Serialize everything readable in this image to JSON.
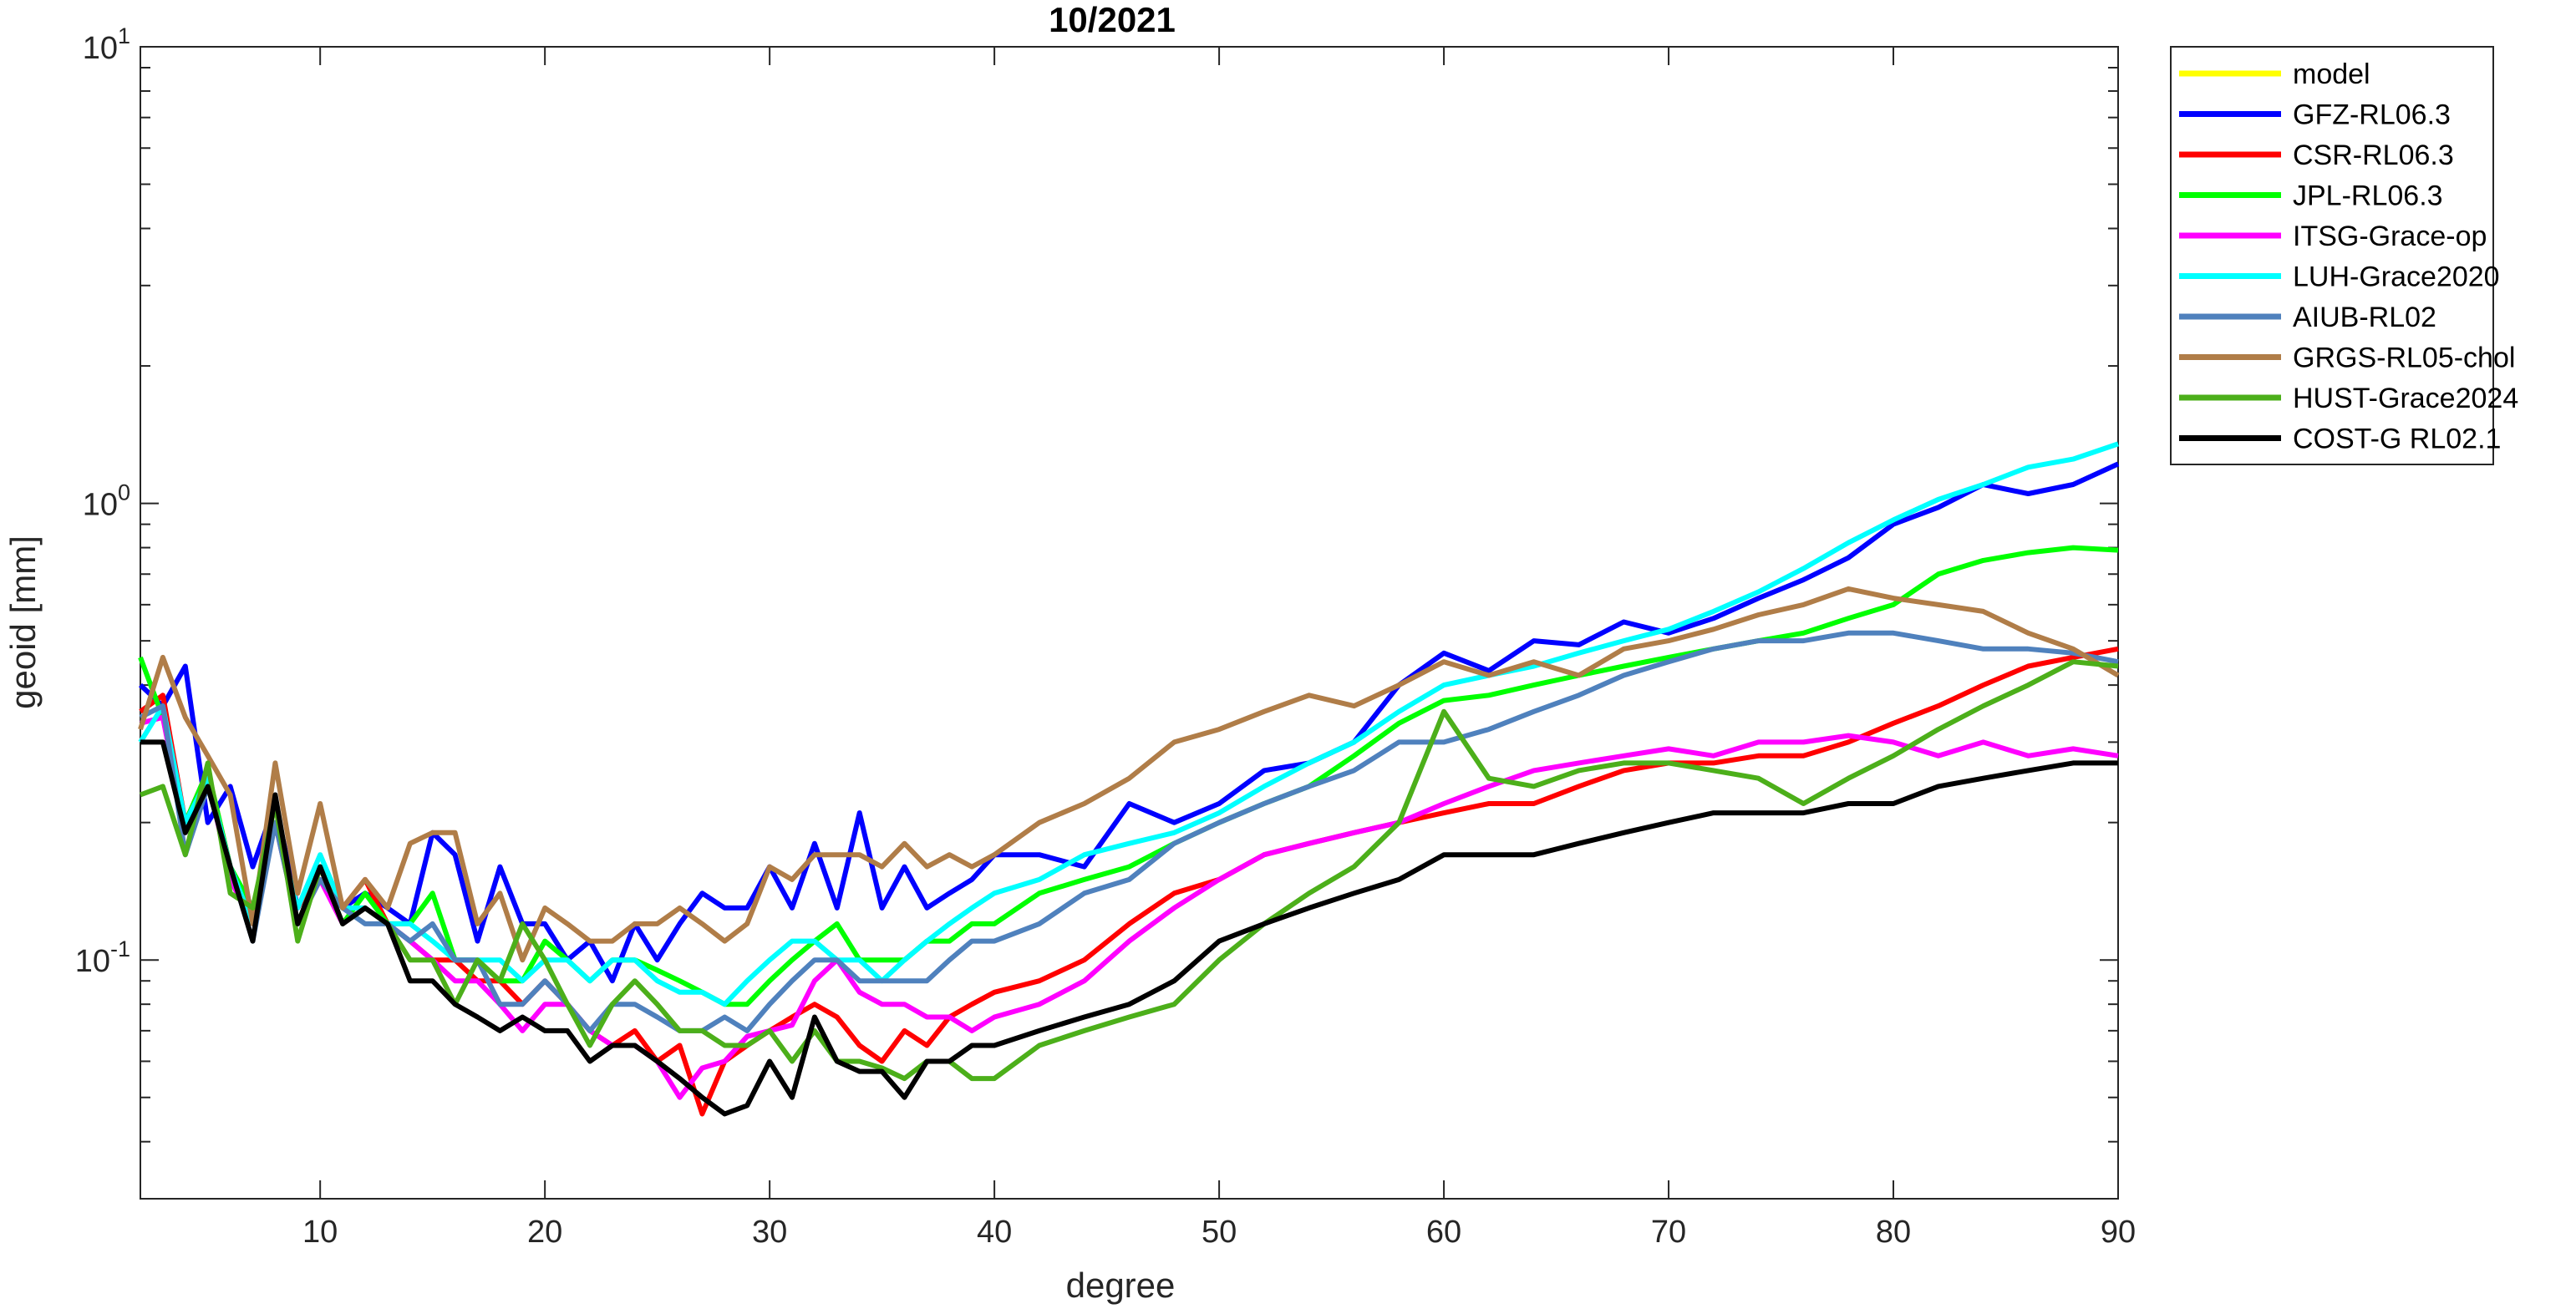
{
  "chart_data": {
    "type": "line",
    "title": "10/2021",
    "xlabel": "degree",
    "ylabel": "geoid [mm]",
    "xlim": [
      2,
      90
    ],
    "ylim": [
      0.03,
      10
    ],
    "y_scale": "log",
    "x_ticks": [
      10,
      20,
      30,
      40,
      50,
      60,
      70,
      80,
      90
    ],
    "x_tick_labels": [
      "10",
      "20",
      "30",
      "40",
      "50",
      "60",
      "70",
      "80",
      "90"
    ],
    "y_ticks": [
      {
        "value": 10,
        "base": "10",
        "exp": "1"
      },
      {
        "value": 1,
        "base": "10",
        "exp": "0"
      },
      {
        "value": 0.1,
        "base": "10",
        "exp": "-1"
      }
    ],
    "grid": false,
    "legend_position": "outside-top-right",
    "series": [
      {
        "name": "model",
        "color": "#ffff00",
        "x": [],
        "y": []
      },
      {
        "name": "GFZ-RL06.3",
        "color": "#0000ff",
        "x": [
          2,
          3,
          4,
          5,
          6,
          7,
          8,
          9,
          10,
          11,
          12,
          13,
          14,
          15,
          16,
          17,
          18,
          19,
          20,
          21,
          22,
          23,
          24,
          25,
          26,
          27,
          28,
          29,
          30,
          31,
          32,
          33,
          34,
          35,
          36,
          37,
          38,
          39,
          40,
          42,
          44,
          46,
          48,
          50,
          52,
          54,
          56,
          58,
          60,
          62,
          64,
          66,
          68,
          70,
          72,
          74,
          76,
          78,
          80,
          82,
          84,
          86,
          88,
          90
        ],
        "y": [
          0.4,
          0.36,
          0.44,
          0.2,
          0.24,
          0.16,
          0.22,
          0.13,
          0.16,
          0.13,
          0.14,
          0.13,
          0.12,
          0.19,
          0.17,
          0.11,
          0.16,
          0.12,
          0.12,
          0.1,
          0.11,
          0.09,
          0.12,
          0.1,
          0.12,
          0.14,
          0.13,
          0.13,
          0.16,
          0.13,
          0.18,
          0.13,
          0.21,
          0.13,
          0.16,
          0.13,
          0.14,
          0.15,
          0.17,
          0.17,
          0.16,
          0.22,
          0.2,
          0.22,
          0.26,
          0.27,
          0.3,
          0.4,
          0.47,
          0.43,
          0.5,
          0.49,
          0.55,
          0.52,
          0.56,
          0.62,
          0.68,
          0.76,
          0.9,
          0.98,
          1.1,
          1.05,
          1.1,
          1.22
        ]
      },
      {
        "name": "CSR-RL06.3",
        "color": "#ff0000",
        "x": [
          2,
          3,
          4,
          5,
          6,
          7,
          8,
          9,
          10,
          11,
          12,
          13,
          14,
          15,
          16,
          17,
          18,
          19,
          20,
          21,
          22,
          23,
          24,
          25,
          26,
          27,
          28,
          29,
          30,
          31,
          32,
          33,
          34,
          35,
          36,
          37,
          38,
          39,
          40,
          42,
          44,
          46,
          48,
          50,
          52,
          54,
          56,
          58,
          60,
          62,
          64,
          66,
          68,
          70,
          72,
          74,
          76,
          78,
          80,
          82,
          84,
          86,
          88,
          90
        ],
        "y": [
          0.35,
          0.38,
          0.2,
          0.26,
          0.16,
          0.12,
          0.2,
          0.13,
          0.16,
          0.13,
          0.15,
          0.12,
          0.11,
          0.1,
          0.1,
          0.09,
          0.09,
          0.08,
          0.09,
          0.08,
          0.07,
          0.065,
          0.07,
          0.06,
          0.065,
          0.046,
          0.06,
          0.065,
          0.07,
          0.075,
          0.08,
          0.075,
          0.065,
          0.06,
          0.07,
          0.065,
          0.075,
          0.08,
          0.085,
          0.09,
          0.1,
          0.12,
          0.14,
          0.15,
          0.17,
          0.18,
          0.19,
          0.2,
          0.21,
          0.22,
          0.22,
          0.24,
          0.26,
          0.27,
          0.27,
          0.28,
          0.28,
          0.3,
          0.33,
          0.36,
          0.4,
          0.44,
          0.46,
          0.48
        ]
      },
      {
        "name": "JPL-RL06.3",
        "color": "#00ff00",
        "x": [
          2,
          3,
          4,
          5,
          6,
          7,
          8,
          9,
          10,
          11,
          12,
          13,
          14,
          15,
          16,
          17,
          18,
          19,
          20,
          21,
          22,
          23,
          24,
          25,
          26,
          27,
          28,
          29,
          30,
          31,
          32,
          33,
          34,
          35,
          36,
          37,
          38,
          39,
          40,
          42,
          44,
          46,
          48,
          50,
          52,
          54,
          56,
          58,
          60,
          62,
          64,
          66,
          68,
          70,
          72,
          74,
          76,
          78,
          80,
          82,
          84,
          86,
          88,
          90
        ],
        "y": [
          0.46,
          0.34,
          0.2,
          0.26,
          0.16,
          0.13,
          0.2,
          0.12,
          0.16,
          0.12,
          0.14,
          0.12,
          0.12,
          0.14,
          0.1,
          0.1,
          0.09,
          0.09,
          0.11,
          0.1,
          0.09,
          0.1,
          0.1,
          0.095,
          0.09,
          0.085,
          0.08,
          0.08,
          0.09,
          0.1,
          0.11,
          0.12,
          0.1,
          0.1,
          0.1,
          0.11,
          0.11,
          0.12,
          0.12,
          0.14,
          0.15,
          0.16,
          0.18,
          0.2,
          0.22,
          0.24,
          0.28,
          0.33,
          0.37,
          0.38,
          0.4,
          0.42,
          0.44,
          0.46,
          0.48,
          0.5,
          0.52,
          0.56,
          0.6,
          0.7,
          0.75,
          0.78,
          0.8,
          0.79
        ]
      },
      {
        "name": "ITSG-Grace-op",
        "color": "#ff00ff",
        "x": [
          2,
          3,
          4,
          5,
          6,
          7,
          8,
          9,
          10,
          11,
          12,
          13,
          14,
          15,
          16,
          17,
          18,
          19,
          20,
          21,
          22,
          23,
          24,
          25,
          26,
          27,
          28,
          29,
          30,
          31,
          32,
          33,
          34,
          35,
          36,
          37,
          38,
          39,
          40,
          42,
          44,
          46,
          48,
          50,
          52,
          54,
          56,
          58,
          60,
          62,
          64,
          66,
          68,
          70,
          72,
          74,
          76,
          78,
          80,
          82,
          84,
          86,
          88,
          90
        ],
        "y": [
          0.33,
          0.34,
          0.19,
          0.25,
          0.15,
          0.12,
          0.2,
          0.12,
          0.15,
          0.12,
          0.13,
          0.12,
          0.11,
          0.1,
          0.09,
          0.09,
          0.08,
          0.07,
          0.08,
          0.08,
          0.07,
          0.065,
          0.065,
          0.06,
          0.05,
          0.058,
          0.06,
          0.068,
          0.07,
          0.072,
          0.09,
          0.1,
          0.085,
          0.08,
          0.08,
          0.075,
          0.075,
          0.07,
          0.075,
          0.08,
          0.09,
          0.11,
          0.13,
          0.15,
          0.17,
          0.18,
          0.19,
          0.2,
          0.22,
          0.24,
          0.26,
          0.27,
          0.28,
          0.29,
          0.28,
          0.3,
          0.3,
          0.31,
          0.3,
          0.28,
          0.3,
          0.28,
          0.29,
          0.28
        ]
      },
      {
        "name": "LUH-Grace2020",
        "color": "#00ffff",
        "x": [
          2,
          3,
          4,
          5,
          6,
          7,
          8,
          9,
          10,
          11,
          12,
          13,
          14,
          15,
          16,
          17,
          18,
          19,
          20,
          21,
          22,
          23,
          24,
          25,
          26,
          27,
          28,
          29,
          30,
          31,
          32,
          33,
          34,
          35,
          36,
          37,
          38,
          39,
          40,
          42,
          44,
          46,
          48,
          50,
          52,
          54,
          56,
          58,
          60,
          62,
          64,
          66,
          68,
          70,
          72,
          74,
          76,
          78,
          80,
          82,
          84,
          86,
          88,
          90
        ],
        "y": [
          0.3,
          0.36,
          0.2,
          0.25,
          0.16,
          0.12,
          0.2,
          0.13,
          0.17,
          0.13,
          0.13,
          0.12,
          0.12,
          0.11,
          0.1,
          0.1,
          0.1,
          0.09,
          0.1,
          0.1,
          0.09,
          0.1,
          0.1,
          0.09,
          0.085,
          0.085,
          0.08,
          0.09,
          0.1,
          0.11,
          0.11,
          0.1,
          0.1,
          0.09,
          0.1,
          0.11,
          0.12,
          0.13,
          0.14,
          0.15,
          0.17,
          0.18,
          0.19,
          0.21,
          0.24,
          0.27,
          0.3,
          0.35,
          0.4,
          0.42,
          0.44,
          0.47,
          0.5,
          0.53,
          0.58,
          0.64,
          0.72,
          0.82,
          0.92,
          1.02,
          1.1,
          1.2,
          1.25,
          1.35
        ]
      },
      {
        "name": "AIUB-RL02",
        "color": "#4f81bd",
        "x": [
          2,
          3,
          4,
          5,
          6,
          7,
          8,
          9,
          10,
          11,
          12,
          13,
          14,
          15,
          16,
          17,
          18,
          19,
          20,
          21,
          22,
          23,
          24,
          25,
          26,
          27,
          28,
          29,
          30,
          31,
          32,
          33,
          34,
          35,
          36,
          37,
          38,
          39,
          40,
          42,
          44,
          46,
          48,
          50,
          52,
          54,
          56,
          58,
          60,
          62,
          64,
          66,
          68,
          70,
          72,
          74,
          76,
          78,
          80,
          82,
          84,
          86,
          88,
          90
        ],
        "y": [
          0.34,
          0.36,
          0.17,
          0.24,
          0.16,
          0.11,
          0.2,
          0.12,
          0.15,
          0.13,
          0.12,
          0.12,
          0.11,
          0.12,
          0.1,
          0.1,
          0.08,
          0.08,
          0.09,
          0.08,
          0.07,
          0.08,
          0.08,
          0.075,
          0.07,
          0.07,
          0.075,
          0.07,
          0.08,
          0.09,
          0.1,
          0.1,
          0.09,
          0.09,
          0.09,
          0.09,
          0.1,
          0.11,
          0.11,
          0.12,
          0.14,
          0.15,
          0.18,
          0.2,
          0.22,
          0.24,
          0.26,
          0.3,
          0.3,
          0.32,
          0.35,
          0.38,
          0.42,
          0.45,
          0.48,
          0.5,
          0.5,
          0.52,
          0.52,
          0.5,
          0.48,
          0.48,
          0.47,
          0.45
        ]
      },
      {
        "name": "GRGS-RL05-chol",
        "color": "#b07d48",
        "x": [
          2,
          3,
          4,
          5,
          6,
          7,
          8,
          9,
          10,
          11,
          12,
          13,
          14,
          15,
          16,
          17,
          18,
          19,
          20,
          21,
          22,
          23,
          24,
          25,
          26,
          27,
          28,
          29,
          30,
          31,
          32,
          33,
          34,
          35,
          36,
          37,
          38,
          39,
          40,
          42,
          44,
          46,
          48,
          50,
          52,
          54,
          56,
          58,
          60,
          62,
          64,
          66,
          68,
          70,
          72,
          74,
          76,
          78,
          80,
          82,
          84,
          86,
          88,
          90
        ],
        "y": [
          0.32,
          0.46,
          0.34,
          0.28,
          0.23,
          0.12,
          0.27,
          0.14,
          0.22,
          0.13,
          0.15,
          0.13,
          0.18,
          0.19,
          0.19,
          0.12,
          0.14,
          0.1,
          0.13,
          0.12,
          0.11,
          0.11,
          0.12,
          0.12,
          0.13,
          0.12,
          0.11,
          0.12,
          0.16,
          0.15,
          0.17,
          0.17,
          0.17,
          0.16,
          0.18,
          0.16,
          0.17,
          0.16,
          0.17,
          0.2,
          0.22,
          0.25,
          0.3,
          0.32,
          0.35,
          0.38,
          0.36,
          0.4,
          0.45,
          0.42,
          0.45,
          0.42,
          0.48,
          0.5,
          0.53,
          0.57,
          0.6,
          0.65,
          0.62,
          0.6,
          0.58,
          0.52,
          0.48,
          0.42
        ]
      },
      {
        "name": "HUST-Grace2024",
        "color": "#4caf1a",
        "x": [
          2,
          3,
          4,
          5,
          6,
          7,
          8,
          9,
          10,
          11,
          12,
          13,
          14,
          15,
          16,
          17,
          18,
          19,
          20,
          21,
          22,
          23,
          24,
          25,
          26,
          27,
          28,
          29,
          30,
          31,
          32,
          33,
          34,
          35,
          36,
          37,
          38,
          39,
          40,
          42,
          44,
          46,
          48,
          50,
          52,
          54,
          56,
          58,
          60,
          62,
          64,
          66,
          68,
          70,
          72,
          74,
          76,
          78,
          80,
          82,
          84,
          86,
          88,
          90
        ],
        "y": [
          0.23,
          0.24,
          0.17,
          0.27,
          0.14,
          0.13,
          0.22,
          0.11,
          0.16,
          0.12,
          0.13,
          0.12,
          0.1,
          0.1,
          0.08,
          0.1,
          0.09,
          0.12,
          0.1,
          0.08,
          0.065,
          0.08,
          0.09,
          0.08,
          0.07,
          0.07,
          0.065,
          0.065,
          0.07,
          0.06,
          0.07,
          0.06,
          0.06,
          0.058,
          0.055,
          0.06,
          0.06,
          0.055,
          0.055,
          0.065,
          0.07,
          0.075,
          0.08,
          0.1,
          0.12,
          0.14,
          0.16,
          0.2,
          0.35,
          0.25,
          0.24,
          0.26,
          0.27,
          0.27,
          0.26,
          0.25,
          0.22,
          0.25,
          0.28,
          0.32,
          0.36,
          0.4,
          0.45,
          0.44
        ]
      },
      {
        "name": "COST-G RL02.1",
        "color": "#000000",
        "x": [
          2,
          3,
          4,
          5,
          6,
          7,
          8,
          9,
          10,
          11,
          12,
          13,
          14,
          15,
          16,
          17,
          18,
          19,
          20,
          21,
          22,
          23,
          24,
          25,
          26,
          27,
          28,
          29,
          30,
          31,
          32,
          33,
          34,
          35,
          36,
          37,
          38,
          39,
          40,
          42,
          44,
          46,
          48,
          50,
          52,
          54,
          56,
          58,
          60,
          62,
          64,
          66,
          68,
          70,
          72,
          74,
          76,
          78,
          80,
          82,
          84,
          86,
          88,
          90
        ],
        "y": [
          0.3,
          0.3,
          0.19,
          0.24,
          0.16,
          0.11,
          0.23,
          0.12,
          0.16,
          0.12,
          0.13,
          0.12,
          0.09,
          0.09,
          0.08,
          0.075,
          0.07,
          0.075,
          0.07,
          0.07,
          0.06,
          0.065,
          0.065,
          0.06,
          0.055,
          0.05,
          0.046,
          0.048,
          0.06,
          0.05,
          0.075,
          0.06,
          0.057,
          0.057,
          0.05,
          0.06,
          0.06,
          0.065,
          0.065,
          0.07,
          0.075,
          0.08,
          0.09,
          0.11,
          0.12,
          0.13,
          0.14,
          0.15,
          0.17,
          0.17,
          0.17,
          0.18,
          0.19,
          0.2,
          0.21,
          0.21,
          0.21,
          0.22,
          0.22,
          0.24,
          0.25,
          0.26,
          0.27,
          0.27
        ]
      }
    ]
  }
}
